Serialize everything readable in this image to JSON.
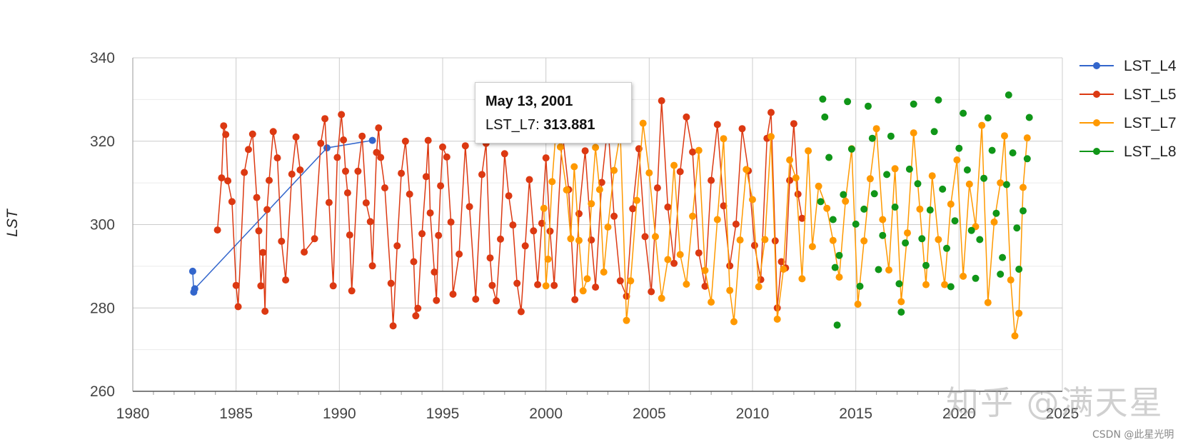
{
  "chart_data": {
    "type": "scatter",
    "ylabel": "LST",
    "xlabel": "",
    "ylim": [
      260,
      340
    ],
    "xlim": [
      1980,
      2025
    ],
    "yticks": [
      "260",
      "280",
      "300",
      "320",
      "340"
    ],
    "xticks": [
      "1980",
      "1985",
      "1990",
      "1995",
      "2000",
      "2005",
      "2010",
      "2015",
      "2020",
      "2025"
    ],
    "grid": true,
    "legend_position": "right",
    "series": [
      {
        "name": "LST_L4",
        "color": "#3366cc",
        "lines": true,
        "points": [
          [
            1982.9,
            288.8
          ],
          [
            1982.95,
            283.8
          ],
          [
            1983.0,
            284.6
          ],
          [
            1989.4,
            318.4
          ],
          [
            1991.6,
            320.2
          ]
        ]
      },
      {
        "name": "LST_L5",
        "color": "#dc3912",
        "lines": true,
        "points": [
          [
            1984.1,
            298.7
          ],
          [
            1984.3,
            311.2
          ],
          [
            1984.4,
            323.7
          ],
          [
            1984.5,
            321.6
          ],
          [
            1984.6,
            310.5
          ],
          [
            1984.8,
            305.5
          ],
          [
            1985.0,
            285.4
          ],
          [
            1985.1,
            280.3
          ],
          [
            1985.4,
            312.5
          ],
          [
            1985.6,
            318.0
          ],
          [
            1985.8,
            321.7
          ],
          [
            1986.0,
            306.5
          ],
          [
            1986.1,
            298.5
          ],
          [
            1986.2,
            285.3
          ],
          [
            1986.3,
            293.3
          ],
          [
            1986.4,
            279.2
          ],
          [
            1986.5,
            303.6
          ],
          [
            1986.6,
            310.6
          ],
          [
            1986.8,
            322.3
          ],
          [
            1987.0,
            316.0
          ],
          [
            1987.2,
            296.0
          ],
          [
            1987.4,
            286.7
          ],
          [
            1987.7,
            312.1
          ],
          [
            1987.9,
            321.0
          ],
          [
            1988.1,
            313.1
          ],
          [
            1988.3,
            293.4
          ],
          [
            1988.8,
            296.6
          ],
          [
            1989.1,
            319.5
          ],
          [
            1989.3,
            325.4
          ],
          [
            1989.5,
            305.3
          ],
          [
            1989.7,
            285.3
          ],
          [
            1989.9,
            316.1
          ],
          [
            1990.1,
            326.4
          ],
          [
            1990.2,
            320.3
          ],
          [
            1990.3,
            312.8
          ],
          [
            1990.4,
            307.6
          ],
          [
            1990.5,
            297.5
          ],
          [
            1990.6,
            284.1
          ],
          [
            1990.9,
            312.8
          ],
          [
            1991.1,
            321.2
          ],
          [
            1991.3,
            305.2
          ],
          [
            1991.5,
            300.7
          ],
          [
            1991.6,
            290.1
          ],
          [
            1991.8,
            317.3
          ],
          [
            1991.9,
            323.2
          ],
          [
            1992.0,
            316.1
          ],
          [
            1992.2,
            308.8
          ],
          [
            1992.5,
            285.9
          ],
          [
            1992.6,
            275.7
          ],
          [
            1992.8,
            294.9
          ],
          [
            1993.0,
            312.3
          ],
          [
            1993.2,
            320.0
          ],
          [
            1993.4,
            307.3
          ],
          [
            1993.6,
            291.1
          ],
          [
            1993.7,
            278.1
          ],
          [
            1993.8,
            279.9
          ],
          [
            1994.0,
            297.8
          ],
          [
            1994.2,
            311.5
          ],
          [
            1994.3,
            320.2
          ],
          [
            1994.4,
            302.8
          ],
          [
            1994.6,
            288.6
          ],
          [
            1994.7,
            281.8
          ],
          [
            1994.8,
            297.4
          ],
          [
            1994.9,
            309.3
          ],
          [
            1995.0,
            318.6
          ],
          [
            1995.2,
            316.2
          ],
          [
            1995.4,
            300.6
          ],
          [
            1995.5,
            283.3
          ],
          [
            1995.8,
            292.9
          ],
          [
            1996.1,
            318.9
          ],
          [
            1996.3,
            304.3
          ],
          [
            1996.6,
            282.1
          ],
          [
            1996.9,
            312.0
          ],
          [
            1997.1,
            319.5
          ],
          [
            1997.3,
            292.0
          ],
          [
            1997.4,
            285.4
          ],
          [
            1997.6,
            281.7
          ],
          [
            1997.8,
            296.5
          ],
          [
            1998.0,
            317.0
          ],
          [
            1998.2,
            306.9
          ],
          [
            1998.4,
            299.9
          ],
          [
            1998.6,
            285.9
          ],
          [
            1998.8,
            279.1
          ],
          [
            1999.0,
            294.9
          ],
          [
            1999.2,
            310.8
          ],
          [
            1999.4,
            298.5
          ],
          [
            1999.6,
            285.6
          ],
          [
            1999.8,
            300.3
          ],
          [
            2000.0,
            316.0
          ],
          [
            2000.2,
            298.4
          ],
          [
            2000.4,
            285.4
          ],
          [
            2000.8,
            322.0
          ],
          [
            2001.1,
            308.4
          ],
          [
            2001.4,
            282.0
          ],
          [
            2001.6,
            302.6
          ],
          [
            2001.9,
            317.7
          ],
          [
            2002.2,
            296.3
          ],
          [
            2002.4,
            285.0
          ],
          [
            2002.7,
            310.1
          ],
          [
            2003.0,
            324.1
          ],
          [
            2003.3,
            302.0
          ],
          [
            2003.6,
            286.5
          ],
          [
            2003.9,
            282.8
          ],
          [
            2004.2,
            303.8
          ],
          [
            2004.5,
            318.2
          ],
          [
            2004.8,
            297.1
          ],
          [
            2005.1,
            283.9
          ],
          [
            2005.4,
            308.8
          ],
          [
            2005.6,
            329.7
          ],
          [
            2005.9,
            304.2
          ],
          [
            2006.2,
            290.7
          ],
          [
            2006.5,
            312.7
          ],
          [
            2006.8,
            325.8
          ],
          [
            2007.1,
            317.4
          ],
          [
            2007.4,
            293.2
          ],
          [
            2007.7,
            285.2
          ],
          [
            2008.0,
            310.6
          ],
          [
            2008.3,
            324.0
          ],
          [
            2008.6,
            304.5
          ],
          [
            2008.9,
            290.1
          ],
          [
            2009.2,
            300.1
          ],
          [
            2009.5,
            323.0
          ],
          [
            2009.8,
            312.9
          ],
          [
            2010.1,
            295.0
          ],
          [
            2010.4,
            286.8
          ],
          [
            2010.7,
            320.7
          ],
          [
            2010.9,
            326.9
          ],
          [
            2011.1,
            296.1
          ],
          [
            2011.2,
            280.0
          ],
          [
            2011.4,
            291.1
          ],
          [
            2011.6,
            289.6
          ],
          [
            2011.8,
            310.6
          ],
          [
            2012.0,
            324.2
          ],
          [
            2012.2,
            307.3
          ],
          [
            2012.4,
            301.5
          ]
        ]
      },
      {
        "name": "LST_L7",
        "color": "#ff9900",
        "lines": true,
        "points": [
          [
            1999.9,
            303.9
          ],
          [
            2000.0,
            285.3
          ],
          [
            2000.1,
            291.7
          ],
          [
            2000.3,
            310.3
          ],
          [
            2000.5,
            323.4
          ],
          [
            2000.7,
            318.6
          ],
          [
            2001.0,
            308.3
          ],
          [
            2001.2,
            296.6
          ],
          [
            2001.37,
            313.881
          ],
          [
            2001.6,
            296.2
          ],
          [
            2001.8,
            284.1
          ],
          [
            2002.0,
            287.0
          ],
          [
            2002.2,
            305.0
          ],
          [
            2002.4,
            318.5
          ],
          [
            2002.6,
            308.4
          ],
          [
            2002.8,
            288.6
          ],
          [
            2003.0,
            299.4
          ],
          [
            2003.3,
            313.0
          ],
          [
            2003.6,
            322.0
          ],
          [
            2003.9,
            277.0
          ],
          [
            2004.1,
            286.5
          ],
          [
            2004.4,
            305.8
          ],
          [
            2004.7,
            324.3
          ],
          [
            2005.0,
            312.4
          ],
          [
            2005.3,
            297.1
          ],
          [
            2005.6,
            282.3
          ],
          [
            2005.9,
            291.6
          ],
          [
            2006.2,
            314.2
          ],
          [
            2006.5,
            292.8
          ],
          [
            2006.8,
            285.7
          ],
          [
            2007.1,
            302.0
          ],
          [
            2007.4,
            317.8
          ],
          [
            2007.7,
            289.0
          ],
          [
            2008.0,
            281.4
          ],
          [
            2008.3,
            301.2
          ],
          [
            2008.6,
            320.6
          ],
          [
            2008.9,
            284.2
          ],
          [
            2009.1,
            276.7
          ],
          [
            2009.4,
            296.3
          ],
          [
            2009.7,
            313.2
          ],
          [
            2010.0,
            306.0
          ],
          [
            2010.3,
            285.1
          ],
          [
            2010.6,
            296.4
          ],
          [
            2010.9,
            321.1
          ],
          [
            2011.2,
            277.3
          ],
          [
            2011.5,
            289.3
          ],
          [
            2011.8,
            315.5
          ],
          [
            2012.1,
            311.2
          ],
          [
            2012.4,
            287.0
          ],
          [
            2012.7,
            317.7
          ],
          [
            2012.9,
            294.7
          ],
          [
            2013.2,
            309.2
          ],
          [
            2013.6,
            303.9
          ],
          [
            2013.9,
            296.2
          ],
          [
            2014.2,
            287.4
          ],
          [
            2014.5,
            305.6
          ],
          [
            2014.8,
            318.2
          ],
          [
            2015.1,
            280.9
          ],
          [
            2015.4,
            296.1
          ],
          [
            2015.7,
            311.0
          ],
          [
            2016.0,
            323.0
          ],
          [
            2016.3,
            301.2
          ],
          [
            2016.6,
            289.1
          ],
          [
            2016.9,
            313.4
          ],
          [
            2017.2,
            281.5
          ],
          [
            2017.5,
            298.0
          ],
          [
            2017.8,
            322.0
          ],
          [
            2018.1,
            303.7
          ],
          [
            2018.4,
            285.6
          ],
          [
            2018.7,
            311.7
          ],
          [
            2019.0,
            296.4
          ],
          [
            2019.3,
            285.6
          ],
          [
            2019.6,
            304.9
          ],
          [
            2019.9,
            315.5
          ],
          [
            2020.2,
            287.6
          ],
          [
            2020.5,
            309.7
          ],
          [
            2020.8,
            299.5
          ],
          [
            2021.1,
            323.8
          ],
          [
            2021.4,
            281.3
          ],
          [
            2021.7,
            300.6
          ],
          [
            2022.0,
            310.0
          ],
          [
            2022.2,
            321.3
          ],
          [
            2022.5,
            286.7
          ],
          [
            2022.7,
            273.3
          ],
          [
            2022.9,
            278.7
          ],
          [
            2023.1,
            308.9
          ],
          [
            2023.3,
            320.8
          ]
        ]
      },
      {
        "name": "LST_L8",
        "color": "#109618",
        "lines": false,
        "points": [
          [
            2013.3,
            305.5
          ],
          [
            2013.4,
            330.1
          ],
          [
            2013.5,
            325.8
          ],
          [
            2013.7,
            316.1
          ],
          [
            2013.9,
            301.2
          ],
          [
            2014.0,
            289.7
          ],
          [
            2014.1,
            275.9
          ],
          [
            2014.2,
            292.6
          ],
          [
            2014.4,
            307.2
          ],
          [
            2014.6,
            329.5
          ],
          [
            2014.8,
            318.1
          ],
          [
            2015.0,
            300.1
          ],
          [
            2015.2,
            285.2
          ],
          [
            2015.4,
            303.7
          ],
          [
            2015.6,
            328.4
          ],
          [
            2015.8,
            320.7
          ],
          [
            2015.9,
            307.4
          ],
          [
            2016.1,
            289.2
          ],
          [
            2016.3,
            297.4
          ],
          [
            2016.5,
            312.0
          ],
          [
            2016.7,
            321.2
          ],
          [
            2016.9,
            304.2
          ],
          [
            2017.1,
            285.8
          ],
          [
            2017.2,
            279.0
          ],
          [
            2017.4,
            295.6
          ],
          [
            2017.6,
            313.3
          ],
          [
            2017.8,
            328.9
          ],
          [
            2018.0,
            309.8
          ],
          [
            2018.2,
            296.6
          ],
          [
            2018.4,
            290.2
          ],
          [
            2018.6,
            303.5
          ],
          [
            2018.8,
            322.3
          ],
          [
            2019.0,
            329.9
          ],
          [
            2019.2,
            308.5
          ],
          [
            2019.4,
            294.3
          ],
          [
            2019.6,
            285.1
          ],
          [
            2019.8,
            300.9
          ],
          [
            2020.0,
            318.3
          ],
          [
            2020.2,
            326.7
          ],
          [
            2020.4,
            313.1
          ],
          [
            2020.6,
            298.6
          ],
          [
            2020.8,
            287.1
          ],
          [
            2021.0,
            296.4
          ],
          [
            2021.2,
            311.1
          ],
          [
            2021.4,
            325.6
          ],
          [
            2021.6,
            317.8
          ],
          [
            2021.8,
            302.7
          ],
          [
            2022.0,
            288.1
          ],
          [
            2022.1,
            292.1
          ],
          [
            2022.3,
            309.6
          ],
          [
            2022.4,
            331.1
          ],
          [
            2022.6,
            317.2
          ],
          [
            2022.8,
            299.2
          ],
          [
            2022.9,
            289.3
          ],
          [
            2023.1,
            303.3
          ],
          [
            2023.3,
            315.8
          ],
          [
            2023.4,
            325.7
          ]
        ]
      }
    ],
    "tooltip": {
      "title": "May 13, 2001",
      "series": "LST_L7",
      "value": "313.881"
    }
  },
  "watermark_text": "知乎 @满天星",
  "credit_text": "CSDN @此星光明"
}
